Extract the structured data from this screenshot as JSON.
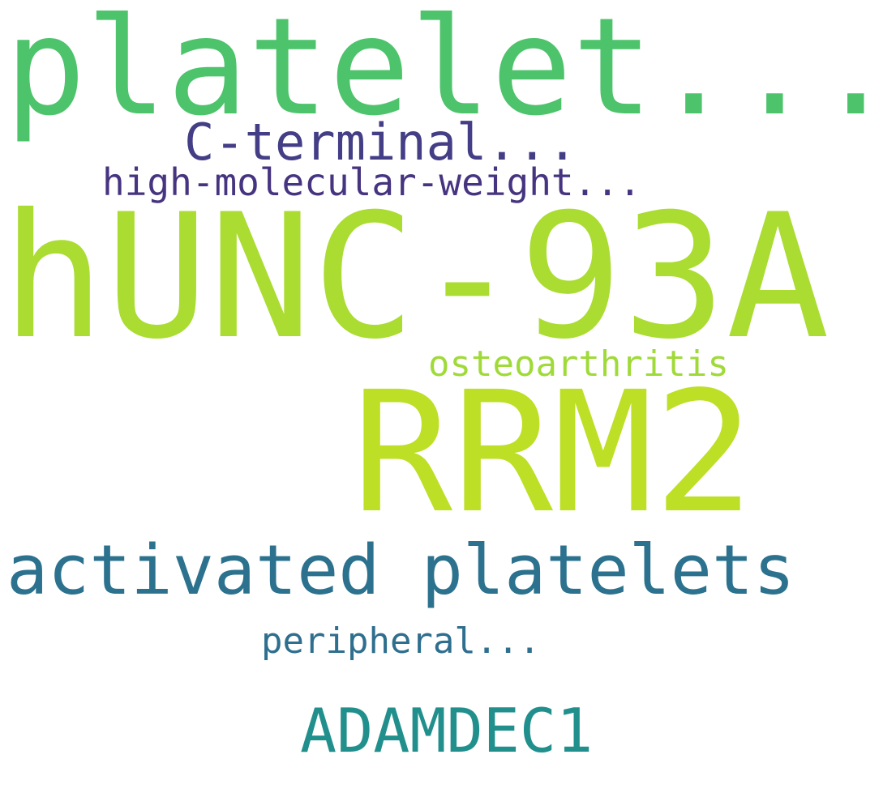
{
  "words": [
    {
      "key": "platelet",
      "text": "platelet...",
      "color": "#4dc36b"
    },
    {
      "key": "cterm",
      "text": "C-terminal...",
      "color": "#433e85"
    },
    {
      "key": "hmw",
      "text": "high-molecular-weight...",
      "color": "#463480"
    },
    {
      "key": "hunc",
      "text": "hUNC-93A",
      "color": "#aadc32"
    },
    {
      "key": "osteo",
      "text": "osteoarthritis",
      "color": "#a0da39"
    },
    {
      "key": "rrm2",
      "text": "RRM2",
      "color": "#bddf26"
    },
    {
      "key": "activated",
      "text": "activated platelets",
      "color": "#2c728e"
    },
    {
      "key": "periph",
      "text": "peripheral...",
      "color": "#2e6e8e"
    },
    {
      "key": "adamdec",
      "text": "ADAMDEC1",
      "color": "#21908d"
    }
  ]
}
